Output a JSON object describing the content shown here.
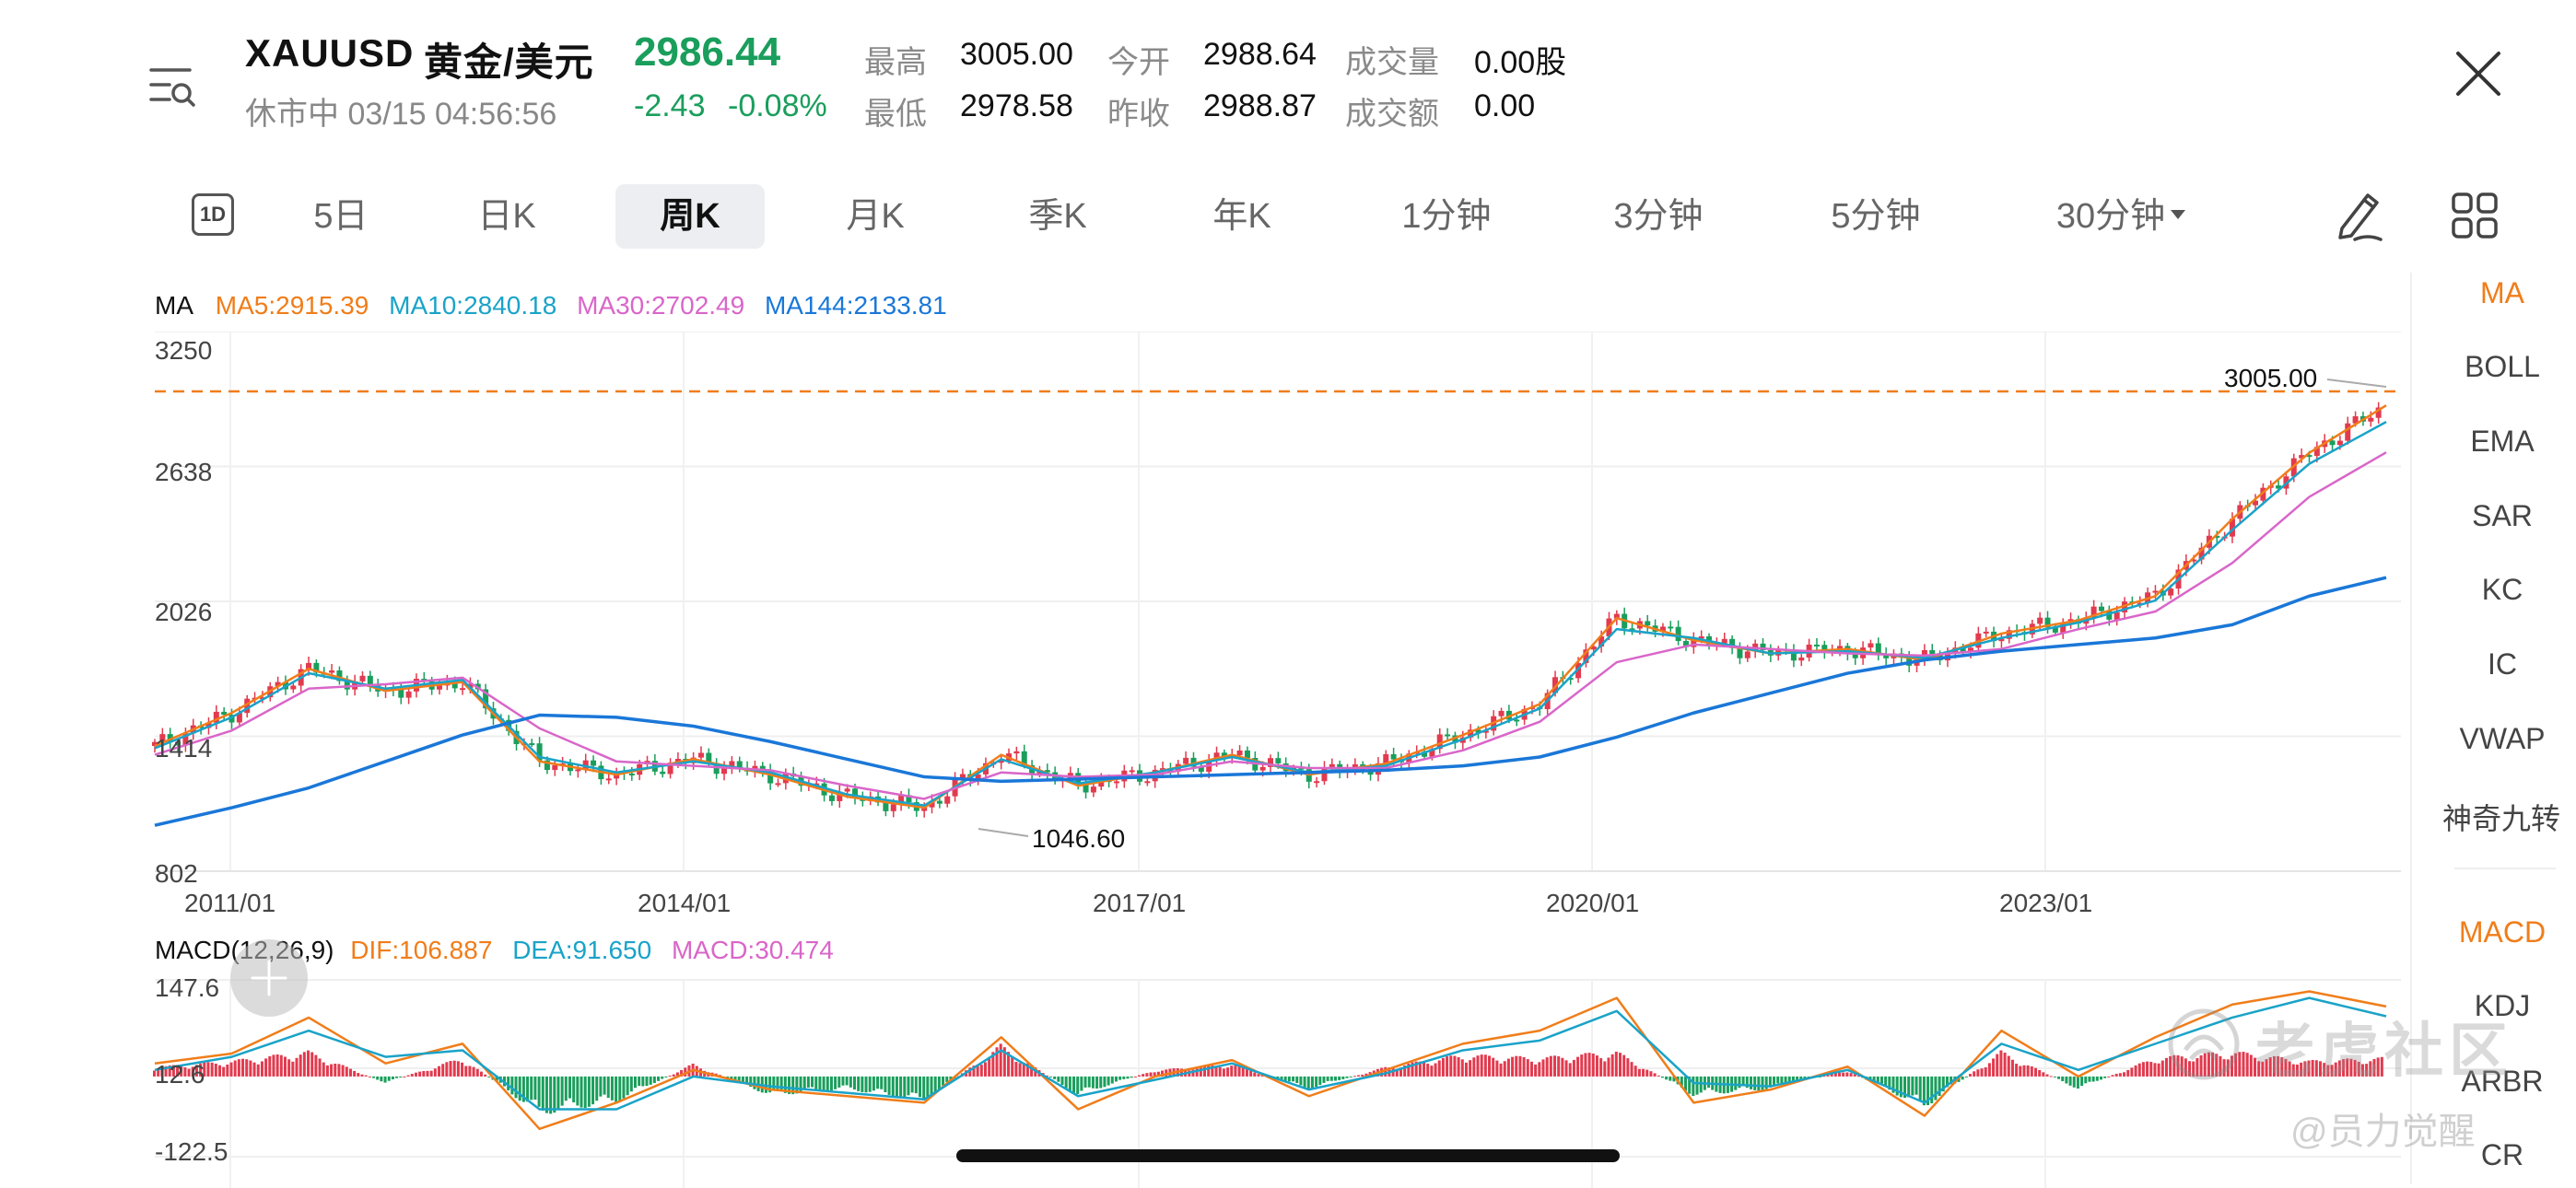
{
  "header": {
    "symbol": "XAUUSD",
    "name": "黄金/美元",
    "price": "2986.44",
    "status_time": "休市中 03/15 04:56:56",
    "change": "-2.43",
    "change_pct": "-0.08%",
    "stats": [
      {
        "label": "最高",
        "value": "3005.00",
        "color": "#e23a4e"
      },
      {
        "label": "最低",
        "value": "2978.58",
        "color": "#1a9e5c"
      },
      {
        "label": "今开",
        "value": "2988.64",
        "color": "#1a9e5c"
      },
      {
        "label": "昨收",
        "value": "2988.87",
        "color": "#111111"
      },
      {
        "label": "成交量",
        "value": "0.00股",
        "color": "#111111"
      },
      {
        "label": "成交额",
        "value": "0.00",
        "color": "#111111"
      }
    ]
  },
  "period_icon": "1D",
  "tabs": [
    "5日",
    "日K",
    "周K",
    "月K",
    "季K",
    "年K",
    "1分钟",
    "3分钟",
    "5分钟",
    "30分钟"
  ],
  "active_tab": "周K",
  "indicators_main": [
    "MA",
    "BOLL",
    "EMA",
    "SAR",
    "KC",
    "IC",
    "VWAP",
    "神奇九转"
  ],
  "indicators_sub": [
    "MACD",
    "KDJ",
    "ARBR",
    "CR"
  ],
  "active_indicator_main": "MA",
  "active_indicator_sub": "MACD",
  "accent": "#f07d1a",
  "ma_legend": {
    "title": "MA",
    "ma5": "MA5:2915.39",
    "ma10": "MA10:2840.18",
    "ma30": "MA30:2702.49",
    "ma144": "MA144:2133.81"
  },
  "macd_legend": {
    "title": "MACD(12,26,9)",
    "dif": "DIF:106.887",
    "dea": "DEA:91.650",
    "macd": "MACD:30.474"
  },
  "chart_data": [
    {
      "type": "line",
      "title": "",
      "y_ticks": [
        "3250",
        "2638",
        "2026",
        "1414",
        "802"
      ],
      "ylim": [
        802,
        3250
      ],
      "x_ticks": [
        "2011/01",
        "2014/01",
        "2017/01",
        "2020/01",
        "2023/01"
      ],
      "high_label": "3005.00",
      "low_label": "1046.60",
      "grid": true,
      "x": [
        "2011/01",
        "2011/07",
        "2012/01",
        "2012/07",
        "2013/01",
        "2013/07",
        "2014/01",
        "2014/07",
        "2015/01",
        "2015/07",
        "2016/01",
        "2016/07",
        "2017/01",
        "2017/07",
        "2018/01",
        "2018/07",
        "2019/01",
        "2019/07",
        "2020/01",
        "2020/07",
        "2021/01",
        "2021/07",
        "2022/01",
        "2022/07",
        "2023/01",
        "2023/07",
        "2024/01",
        "2024/07",
        "2025/01",
        "2025/03"
      ],
      "series": [
        {
          "name": "MA5",
          "color": "#f07d1a",
          "values": [
            1370,
            1520,
            1720,
            1620,
            1660,
            1300,
            1240,
            1310,
            1240,
            1140,
            1090,
            1330,
            1190,
            1250,
            1330,
            1240,
            1290,
            1420,
            1560,
            1950,
            1850,
            1790,
            1810,
            1760,
            1880,
            1940,
            2050,
            2400,
            2700,
            2915
          ]
        },
        {
          "name": "MA10",
          "color": "#1aa3c8",
          "values": [
            1360,
            1500,
            1700,
            1630,
            1670,
            1320,
            1250,
            1300,
            1250,
            1150,
            1100,
            1310,
            1200,
            1250,
            1320,
            1250,
            1280,
            1400,
            1540,
            1900,
            1860,
            1790,
            1800,
            1770,
            1860,
            1930,
            2030,
            2350,
            2650,
            2840
          ]
        },
        {
          "name": "MA30",
          "color": "#d966c9",
          "values": [
            1330,
            1440,
            1630,
            1650,
            1680,
            1450,
            1300,
            1280,
            1260,
            1190,
            1130,
            1250,
            1230,
            1240,
            1300,
            1270,
            1270,
            1350,
            1480,
            1750,
            1830,
            1810,
            1790,
            1780,
            1810,
            1900,
            1980,
            2200,
            2500,
            2702
          ]
        },
        {
          "name": "MA144",
          "color": "#1a77d8",
          "values": [
            1010,
            1090,
            1180,
            1300,
            1420,
            1510,
            1500,
            1460,
            1390,
            1310,
            1230,
            1210,
            1220,
            1230,
            1240,
            1250,
            1260,
            1280,
            1320,
            1410,
            1520,
            1610,
            1700,
            1760,
            1800,
            1830,
            1860,
            1920,
            2050,
            2134
          ]
        }
      ]
    },
    {
      "type": "bar",
      "title": "",
      "y_ticks": [
        "147.6",
        "12.6",
        "-122.5"
      ],
      "ylim": [
        -122.5,
        147.6
      ],
      "x": [
        "2011/01",
        "2011/07",
        "2012/01",
        "2012/07",
        "2013/01",
        "2013/07",
        "2014/01",
        "2014/07",
        "2015/01",
        "2015/07",
        "2016/01",
        "2016/07",
        "2017/01",
        "2017/07",
        "2018/01",
        "2018/07",
        "2019/01",
        "2019/07",
        "2020/01",
        "2020/07",
        "2021/01",
        "2021/07",
        "2022/01",
        "2022/07",
        "2023/01",
        "2023/07",
        "2024/01",
        "2024/07",
        "2025/01",
        "2025/03"
      ],
      "series": [
        {
          "name": "MACD",
          "values": [
            15,
            25,
            40,
            -10,
            30,
            -60,
            -40,
            20,
            -30,
            -20,
            -40,
            50,
            -30,
            10,
            20,
            -20,
            15,
            35,
            30,
            40,
            -30,
            -20,
            10,
            -50,
            40,
            -20,
            30,
            40,
            25,
            30
          ]
        },
        {
          "name": "DIF",
          "color": "#f07d1a",
          "values": [
            20,
            35,
            90,
            20,
            50,
            -80,
            -40,
            10,
            -20,
            -30,
            -40,
            60,
            -50,
            0,
            25,
            -30,
            10,
            50,
            70,
            120,
            -40,
            -20,
            15,
            -60,
            70,
            0,
            60,
            110,
            130,
            107
          ]
        },
        {
          "name": "DEA",
          "color": "#1aa3c8",
          "values": [
            10,
            30,
            70,
            30,
            40,
            -50,
            -50,
            0,
            -15,
            -25,
            -35,
            40,
            -30,
            -5,
            20,
            -20,
            5,
            40,
            55,
            100,
            -10,
            -15,
            10,
            -40,
            50,
            10,
            50,
            90,
            120,
            92
          ]
        }
      ]
    }
  ],
  "watermark": {
    "brand": "老虎社区",
    "user": "@员力觉醒"
  }
}
